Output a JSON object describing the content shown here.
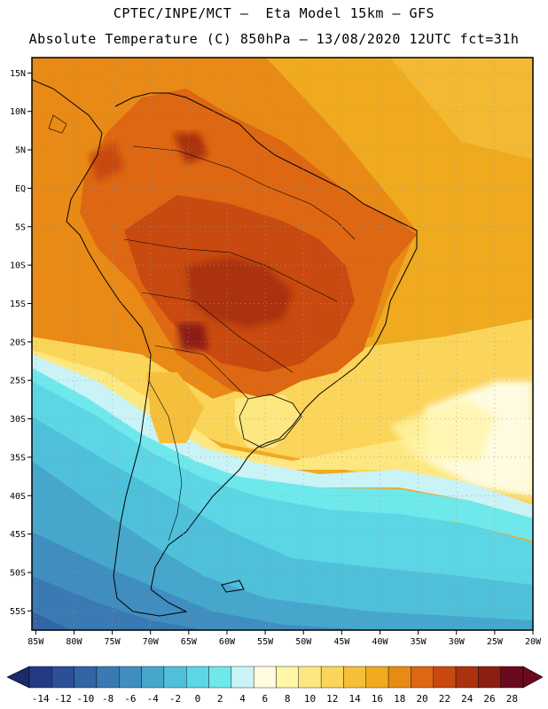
{
  "header": {
    "title": "CPTEC/INPE/MCT –  Eta Model 15km – GFS",
    "subtitle": "Absolute Temperature (C) 850hPa – 13/08/2020 12UTC fct=31h"
  },
  "axes": {
    "lat_labels": [
      "15N",
      "10N",
      "5N",
      "EQ",
      "5S",
      "10S",
      "15S",
      "20S",
      "25S",
      "30S",
      "35S",
      "40S",
      "45S",
      "50S",
      "55S"
    ],
    "lat_values": [
      15,
      10,
      5,
      0,
      -5,
      -10,
      -15,
      -20,
      -25,
      -30,
      -35,
      -40,
      -45,
      -50,
      -55
    ],
    "lon_labels": [
      "85W",
      "80W",
      "75W",
      "70W",
      "65W",
      "60W",
      "55W",
      "50W",
      "45W",
      "40W",
      "35W",
      "30W",
      "25W",
      "20W"
    ],
    "lon_values": [
      -85,
      -80,
      -75,
      -70,
      -65,
      -60,
      -55,
      -50,
      -45,
      -40,
      -35,
      -30,
      -25,
      -20
    ],
    "lon_range": [
      -85.5,
      -20
    ],
    "lat_range": [
      -57.5,
      17
    ]
  },
  "colorbar": {
    "labels": [
      "-14",
      "-12",
      "-10",
      "-8",
      "-6",
      "-4",
      "-2",
      "0",
      "2",
      "4",
      "6",
      "8",
      "10",
      "12",
      "14",
      "16",
      "18",
      "20",
      "22",
      "24",
      "26",
      "28"
    ],
    "under_color": "#1a2a6c",
    "over_color": "#6b0a1e",
    "colors": [
      "#243a85",
      "#2c4f97",
      "#3364a6",
      "#3a79b3",
      "#3f8ebf",
      "#46a6cc",
      "#4fc0da",
      "#5cd6e4",
      "#6fe8ec",
      "#c9f3f6",
      "#fffbe0",
      "#fff6a8",
      "#fde780",
      "#fbd45a",
      "#f6bf3a",
      "#efaa1f",
      "#e88a15",
      "#dd6712",
      "#c84a10",
      "#aa320f",
      "#8c1f12",
      "#6b0a1e"
    ]
  },
  "map": {
    "field": "temperature 850hPa",
    "ocean_north_color": "#efaa1f",
    "land_hot_color": "#c84a10",
    "south_cold_color": "#46a6cc"
  }
}
